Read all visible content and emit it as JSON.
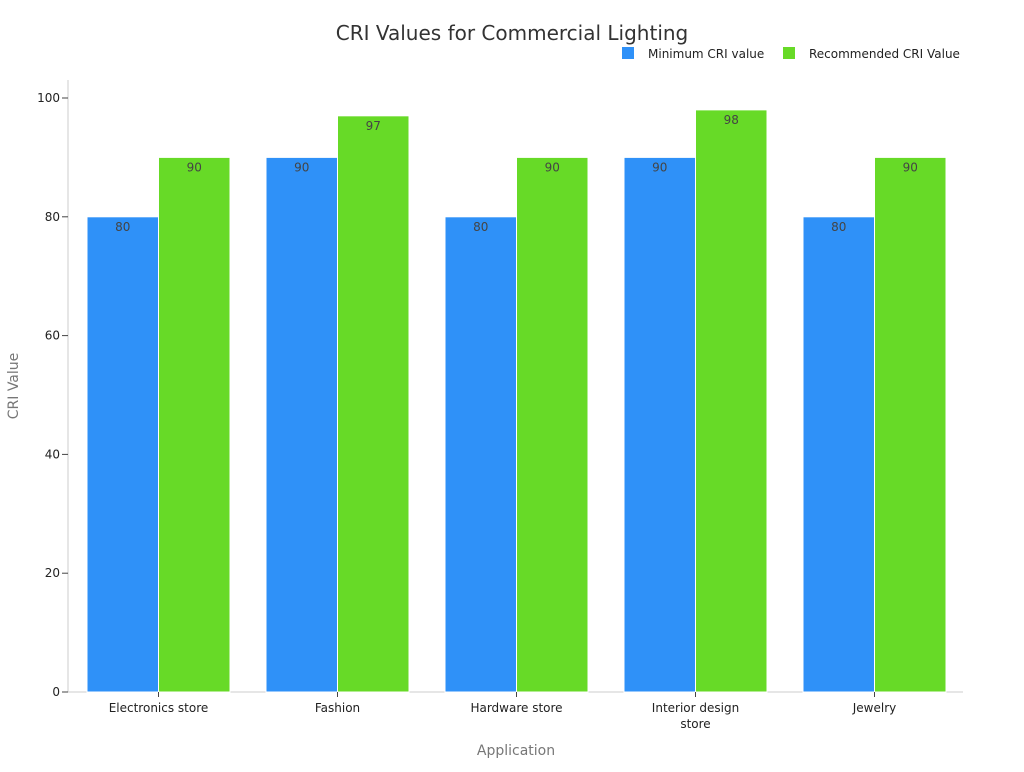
{
  "chart_data": {
    "type": "bar",
    "title": "CRI Values for Commercial Lighting",
    "xlabel": "Application",
    "ylabel": "CRI Value",
    "ylim": [
      0,
      100
    ],
    "yticks": [
      0,
      20,
      40,
      60,
      80,
      100
    ],
    "categories": [
      [
        "Electronics store"
      ],
      [
        "Fashion"
      ],
      [
        "Hardware store"
      ],
      [
        "Interior design",
        "store"
      ],
      [
        "Jewelry"
      ]
    ],
    "series": [
      {
        "name": "Minimum CRI value",
        "color": "#2f91f8",
        "values": [
          80,
          90,
          80,
          90,
          80
        ]
      },
      {
        "name": "Recommended CRI Value",
        "color": "#67da27",
        "values": [
          90,
          97,
          90,
          98,
          90
        ]
      }
    ],
    "legend_position": "top-right",
    "grid": false
  }
}
